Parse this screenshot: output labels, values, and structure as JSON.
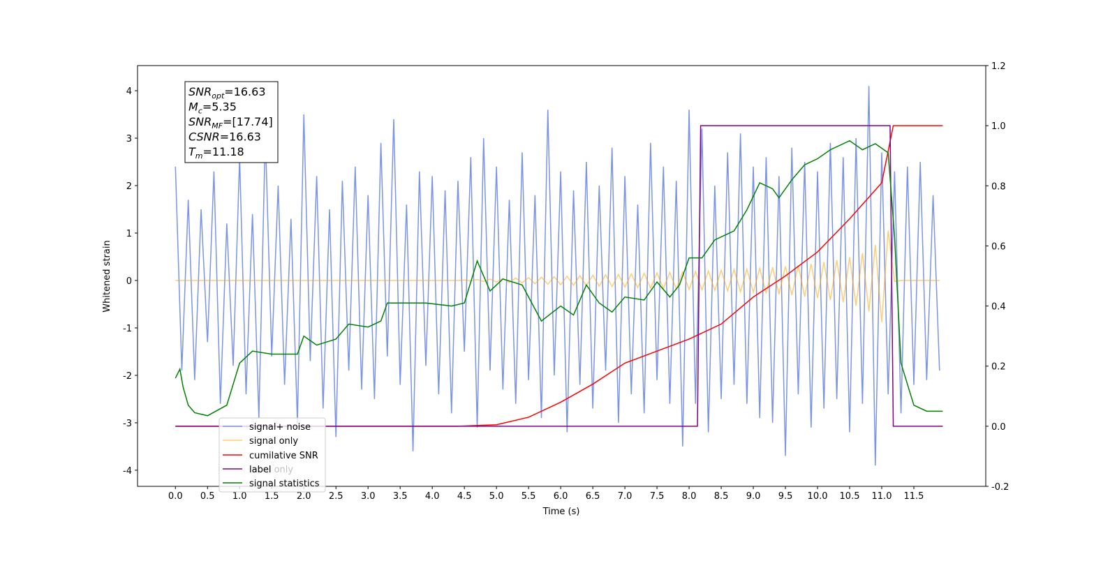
{
  "chart_data": {
    "type": "line",
    "xlabel": "Time (s)",
    "ylabel": "Whitened strain",
    "xlim": [
      -0.59,
      12.62
    ],
    "ylim": [
      -4.34,
      4.53
    ],
    "y2lim": [
      -0.2,
      1.2
    ],
    "xticks": [
      {
        "value": 0,
        "label": "0.0"
      },
      0.5,
      {
        "value": 1,
        "label": "1.0"
      },
      1.5,
      {
        "value": 2,
        "label": "2.0"
      },
      2.5,
      {
        "value": 3,
        "label": "3.0"
      },
      3.5,
      {
        "value": 4,
        "label": "4.0"
      },
      4.5,
      {
        "value": 5,
        "label": "5.0"
      },
      5.5,
      {
        "value": 6,
        "label": "6.0"
      },
      6.5,
      {
        "value": 7,
        "label": "7.0"
      },
      7.5,
      {
        "value": 8,
        "label": "8.0"
      },
      8.5,
      {
        "value": 9,
        "label": "9.0"
      },
      9.5,
      {
        "value": 10,
        "label": "10.0"
      },
      10.5,
      {
        "value": 11,
        "label": "11.0"
      },
      11.5
    ],
    "yticks": [
      -4,
      -3,
      -2,
      -1,
      0,
      1,
      2,
      3,
      4
    ],
    "y2ticks": [
      -0.2,
      {
        "value": 0,
        "label": "0.0"
      },
      0.2,
      0.4,
      0.6,
      0.8,
      {
        "value": 1,
        "label": "1.0"
      },
      1.2
    ],
    "legend_loc": "lower left",
    "legend_faded": [
      "label only"
    ],
    "annotation": [
      {
        "text": "SNR",
        "sub": "opt",
        "rest": "=16.63"
      },
      {
        "text": "M",
        "sub": "c",
        "rest": "=5.35"
      },
      {
        "text": "SNR",
        "sub": "MF",
        "rest": "=[17.74]"
      },
      {
        "text": "CSNR",
        "rest": "=16.63"
      },
      {
        "text": "T",
        "sub": "m",
        "rest": "=11.18"
      }
    ],
    "x": [
      0,
      0.1,
      0.2,
      0.3,
      0.4,
      0.5,
      0.6,
      0.7,
      0.8,
      0.9,
      1,
      1.1,
      1.2,
      1.3,
      1.4,
      1.5,
      1.6,
      1.7,
      1.8,
      1.9,
      2,
      2.1,
      2.2,
      2.3,
      2.4,
      2.5,
      2.6,
      2.7,
      2.8,
      2.9,
      3,
      3.1,
      3.2,
      3.3,
      3.4,
      3.5,
      3.6,
      3.7,
      3.8,
      3.9,
      4,
      4.1,
      4.2,
      4.3,
      4.4,
      4.5,
      4.6,
      4.7,
      4.8,
      4.9,
      5,
      5.1,
      5.2,
      5.3,
      5.4,
      5.5,
      5.6,
      5.7,
      5.8,
      5.9,
      6,
      6.1,
      6.2,
      6.3,
      6.4,
      6.5,
      6.6,
      6.7,
      6.8,
      6.9,
      7,
      7.1,
      7.2,
      7.3,
      7.4,
      7.5,
      7.6,
      7.7,
      7.8,
      7.9,
      8,
      8.1,
      8.2,
      8.3,
      8.4,
      8.5,
      8.6,
      8.7,
      8.8,
      8.9,
      9,
      9.1,
      9.2,
      9.3,
      9.4,
      9.5,
      9.6,
      9.7,
      9.8,
      9.9,
      10,
      10.1,
      10.2,
      10.3,
      10.4,
      10.5,
      10.6,
      10.7,
      10.8,
      10.9,
      11,
      11.1,
      11.2,
      11.3,
      11.4,
      11.5,
      11.6,
      11.7,
      11.8,
      11.9
    ],
    "series": [
      {
        "name": "signal+ noise",
        "color": "#7b93e8",
        "axis": "y",
        "values": [
          2.4,
          -1.9,
          1.7,
          -2.1,
          1.5,
          -1.3,
          2.3,
          -2.6,
          1.2,
          -1.8,
          2.6,
          -2.4,
          1.4,
          -2.9,
          3.1,
          -1.6,
          2.0,
          -2.2,
          1.3,
          -3.0,
          3.5,
          -1.7,
          2.2,
          -2.7,
          1.5,
          -3.3,
          2.1,
          -1.9,
          2.4,
          -2.3,
          1.8,
          -2.5,
          2.9,
          -1.6,
          3.4,
          -2.2,
          1.6,
          -3.6,
          2.3,
          -1.8,
          2.2,
          -2.4,
          1.9,
          -2.8,
          2.1,
          -1.5,
          2.6,
          -3.1,
          3.0,
          -1.9,
          2.4,
          -2.3,
          1.7,
          -2.6,
          2.7,
          -2.1,
          1.8,
          -2.9,
          3.6,
          -2.0,
          2.3,
          -3.2,
          1.9,
          -2.2,
          2.5,
          -2.7,
          2.0,
          -1.9,
          2.8,
          -3.0,
          2.2,
          -2.4,
          1.6,
          -2.8,
          2.9,
          -2.1,
          2.4,
          -2.6,
          2.1,
          -3.5,
          3.6,
          -2.6,
          3.2,
          -3.2,
          2.0,
          -2.5,
          2.7,
          -2.2,
          3.1,
          -2.6,
          2.4,
          -2.9,
          2.6,
          -3.0,
          2.2,
          -3.7,
          2.8,
          -2.4,
          2.5,
          -3.1,
          2.3,
          -2.7,
          2.9,
          -2.5,
          2.6,
          -3.2,
          3.0,
          -2.6,
          4.1,
          -3.9,
          2.7,
          -2.4,
          2.3,
          -2.8,
          2.4,
          -2.2,
          2.5,
          -2.1,
          1.8,
          -1.9
        ]
      },
      {
        "name": "signal only",
        "color": "#ffa500",
        "axis": "y",
        "values": [
          0,
          0,
          0,
          0,
          0,
          0,
          0,
          0,
          0,
          0,
          0,
          0,
          0,
          0,
          0,
          0,
          0,
          0,
          0,
          0,
          0,
          0,
          0,
          0,
          0,
          0,
          0,
          0,
          0,
          0,
          0,
          0,
          0,
          0,
          0,
          0,
          0,
          0,
          0,
          0,
          0,
          0,
          0,
          0,
          0,
          0.01,
          -0.01,
          0.02,
          -0.02,
          0.03,
          -0.03,
          0.04,
          -0.04,
          0.05,
          -0.05,
          0.06,
          -0.07,
          0.07,
          -0.08,
          0.08,
          -0.09,
          0.09,
          -0.1,
          0.1,
          -0.11,
          0.11,
          -0.12,
          0.12,
          -0.13,
          0.13,
          -0.14,
          0.14,
          -0.15,
          0.15,
          -0.16,
          0.16,
          -0.17,
          0.17,
          -0.18,
          0.18,
          -0.19,
          0.19,
          -0.2,
          0.2,
          -0.21,
          0.22,
          -0.22,
          0.23,
          -0.24,
          0.24,
          -0.25,
          0.26,
          -0.27,
          0.28,
          -0.29,
          0.3,
          -0.31,
          0.32,
          -0.34,
          0.35,
          -0.37,
          0.39,
          -0.41,
          0.43,
          -0.46,
          0.49,
          -0.53,
          0.58,
          -0.65,
          0.75,
          -0.88,
          1.05,
          -0.02,
          0,
          0,
          0,
          0,
          0,
          0,
          0
        ]
      },
      {
        "name": "cumilative SNR",
        "color": "#ff0000",
        "axis": "y2",
        "x": [
          0,
          4.4,
          5,
          5.5,
          6,
          6.5,
          7,
          7.5,
          8,
          8.5,
          9,
          9.5,
          10,
          10.5,
          11,
          11.18,
          11.95
        ],
        "values": [
          0,
          0,
          0.005,
          0.03,
          0.08,
          0.14,
          0.21,
          0.25,
          0.29,
          0.34,
          0.43,
          0.5,
          0.58,
          0.69,
          0.81,
          1,
          1
        ]
      },
      {
        "name": "label",
        "color": "#800080",
        "axis": "y2",
        "x": [
          0,
          8.13,
          8.18,
          11.13,
          11.18,
          11.95
        ],
        "values": [
          0,
          0,
          1,
          1,
          0,
          0
        ]
      },
      {
        "name": "signal statistics",
        "color": "#008000",
        "axis": "y2",
        "x": [
          0,
          0.07,
          0.12,
          0.2,
          0.3,
          0.5,
          0.8,
          1,
          1.2,
          1.5,
          1.9,
          2,
          2.2,
          2.5,
          2.7,
          3,
          3.2,
          3.3,
          3.6,
          3.9,
          4.3,
          4.5,
          4.7,
          4.9,
          5.1,
          5.4,
          5.7,
          6,
          6.2,
          6.4,
          6.6,
          6.8,
          7,
          7.3,
          7.5,
          7.7,
          7.85,
          8,
          8.2,
          8.4,
          8.7,
          8.9,
          9.1,
          9.3,
          9.4,
          9.6,
          9.8,
          10,
          10.2,
          10.5,
          10.7,
          10.9,
          11.1,
          11.2,
          11.3,
          11.5,
          11.7,
          11.8,
          11.95
        ],
        "values": [
          0.16,
          0.19,
          0.13,
          0.07,
          0.045,
          0.035,
          0.07,
          0.21,
          0.25,
          0.24,
          0.24,
          0.3,
          0.27,
          0.29,
          0.34,
          0.33,
          0.35,
          0.41,
          0.41,
          0.41,
          0.4,
          0.41,
          0.55,
          0.45,
          0.49,
          0.47,
          0.35,
          0.4,
          0.37,
          0.47,
          0.41,
          0.38,
          0.43,
          0.42,
          0.48,
          0.43,
          0.47,
          0.56,
          0.56,
          0.62,
          0.65,
          0.72,
          0.81,
          0.79,
          0.76,
          0.82,
          0.87,
          0.89,
          0.92,
          0.95,
          0.92,
          0.94,
          0.91,
          0.63,
          0.21,
          0.07,
          0.05,
          0.05,
          0.05
        ]
      }
    ]
  }
}
